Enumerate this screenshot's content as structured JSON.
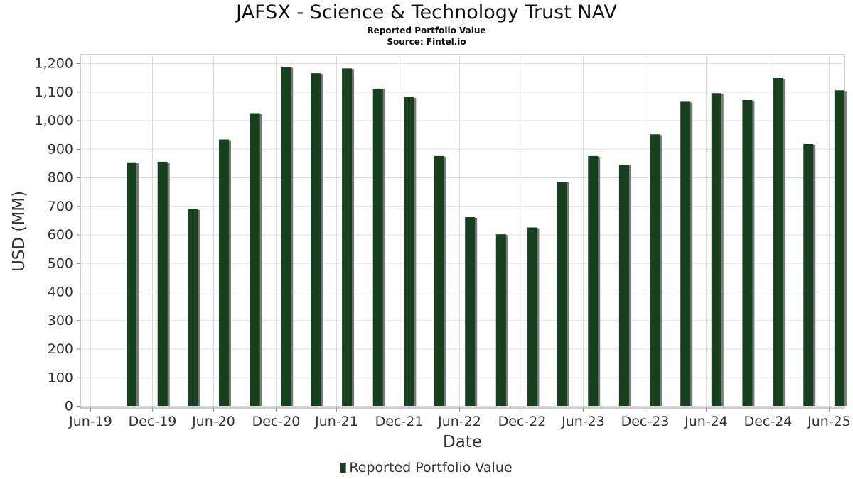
{
  "header": {
    "title": "JAFSX - Science & Technology Trust NAV",
    "subtitle": "Reported Portfolio Value",
    "source": "Source: Fintel.io"
  },
  "legend": {
    "label": "Reported Portfolio Value"
  },
  "colors": {
    "bar": "#17401f",
    "bar_shadow": "#7a7a7a",
    "grid": "#dddddd",
    "axis": "#888888"
  },
  "chart_data": {
    "type": "bar",
    "title": "JAFSX - Science & Technology Trust NAV",
    "subtitle": "Reported Portfolio Value",
    "xlabel": "Date",
    "ylabel": "USD (MM)",
    "ylim": [
      0,
      1230
    ],
    "yticks": [
      0,
      100,
      200,
      300,
      400,
      500,
      600,
      700,
      800,
      900,
      1000,
      1100,
      1200
    ],
    "ytick_labels": [
      "0",
      "100",
      "200",
      "300",
      "400",
      "500",
      "600",
      "700",
      "800",
      "900",
      "1,000",
      "1,100",
      "1,200"
    ],
    "xlim": [
      "2019-06-01",
      "2025-08-15"
    ],
    "xticks": [
      "2019-06-30",
      "2019-12-31",
      "2020-06-30",
      "2020-12-31",
      "2021-06-30",
      "2021-12-31",
      "2022-06-30",
      "2022-12-31",
      "2023-06-30",
      "2023-12-31",
      "2024-06-30",
      "2024-12-31",
      "2025-06-30"
    ],
    "xtick_labels": [
      "Jun-19",
      "Dec-19",
      "Jun-20",
      "Dec-20",
      "Jun-21",
      "Dec-21",
      "Jun-22",
      "Dec-22",
      "Jun-23",
      "Dec-23",
      "Jun-24",
      "Dec-24",
      "Jun-25"
    ],
    "grid": true,
    "legend_position": "bottom-center",
    "series": [
      {
        "name": "Reported Portfolio Value",
        "x": [
          "2019-10-31",
          "2020-01-31",
          "2020-04-30",
          "2020-07-31",
          "2020-10-31",
          "2021-01-31",
          "2021-04-30",
          "2021-07-31",
          "2021-10-31",
          "2022-01-31",
          "2022-04-30",
          "2022-07-31",
          "2022-10-31",
          "2023-01-31",
          "2023-04-30",
          "2023-07-31",
          "2023-10-31",
          "2024-01-31",
          "2024-04-30",
          "2024-07-31",
          "2024-10-31",
          "2025-01-31",
          "2025-04-30",
          "2025-07-31"
        ],
        "values": [
          853,
          855,
          689,
          933,
          1025,
          1187,
          1165,
          1182,
          1111,
          1081,
          875,
          661,
          601,
          625,
          785,
          875,
          845,
          951,
          1065,
          1095,
          1071,
          1148,
          917,
          1105
        ]
      }
    ]
  }
}
